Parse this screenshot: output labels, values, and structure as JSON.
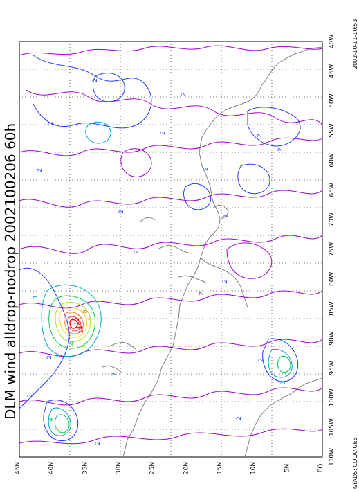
{
  "title": "DLM wind alldrop-nodrop 2002100206 60h",
  "credit": "GrADS: COLA/IGES",
  "timestamp": "2002-10-11-10:53",
  "lon_labels": [
    "110W",
    "105W",
    "100W",
    "95W",
    "90W",
    "85W",
    "80W",
    "75W",
    "70W",
    "65W",
    "60W",
    "55W",
    "50W",
    "45W",
    "40W"
  ],
  "lat_labels": [
    "EQ",
    "5N",
    "10N",
    "15N",
    "20N",
    "25N",
    "30N",
    "35N",
    "40N",
    "45N"
  ],
  "contour_labels": [
    "2",
    "2",
    "2",
    "2",
    "2",
    "2",
    "2",
    "2",
    "2",
    "2",
    "2",
    "2",
    "2",
    "2",
    "2",
    "2",
    "2",
    "2",
    "2",
    "4",
    "3",
    "3",
    "5",
    "4",
    "6",
    "8",
    "10",
    "12",
    "14"
  ],
  "colors": {
    "contour_1": "#a000c8",
    "contour_2": "#1e3cff",
    "contour_3": "#00a0c8",
    "contour_4": "#00c850",
    "contour_5": "#a0e632",
    "contour_6": "#e6dc32",
    "contour_8": "#f08228",
    "contour_10": "#fa3c3c",
    "contour_12": "#e60000",
    "coastline": "#808080",
    "grid": "#000000"
  }
}
